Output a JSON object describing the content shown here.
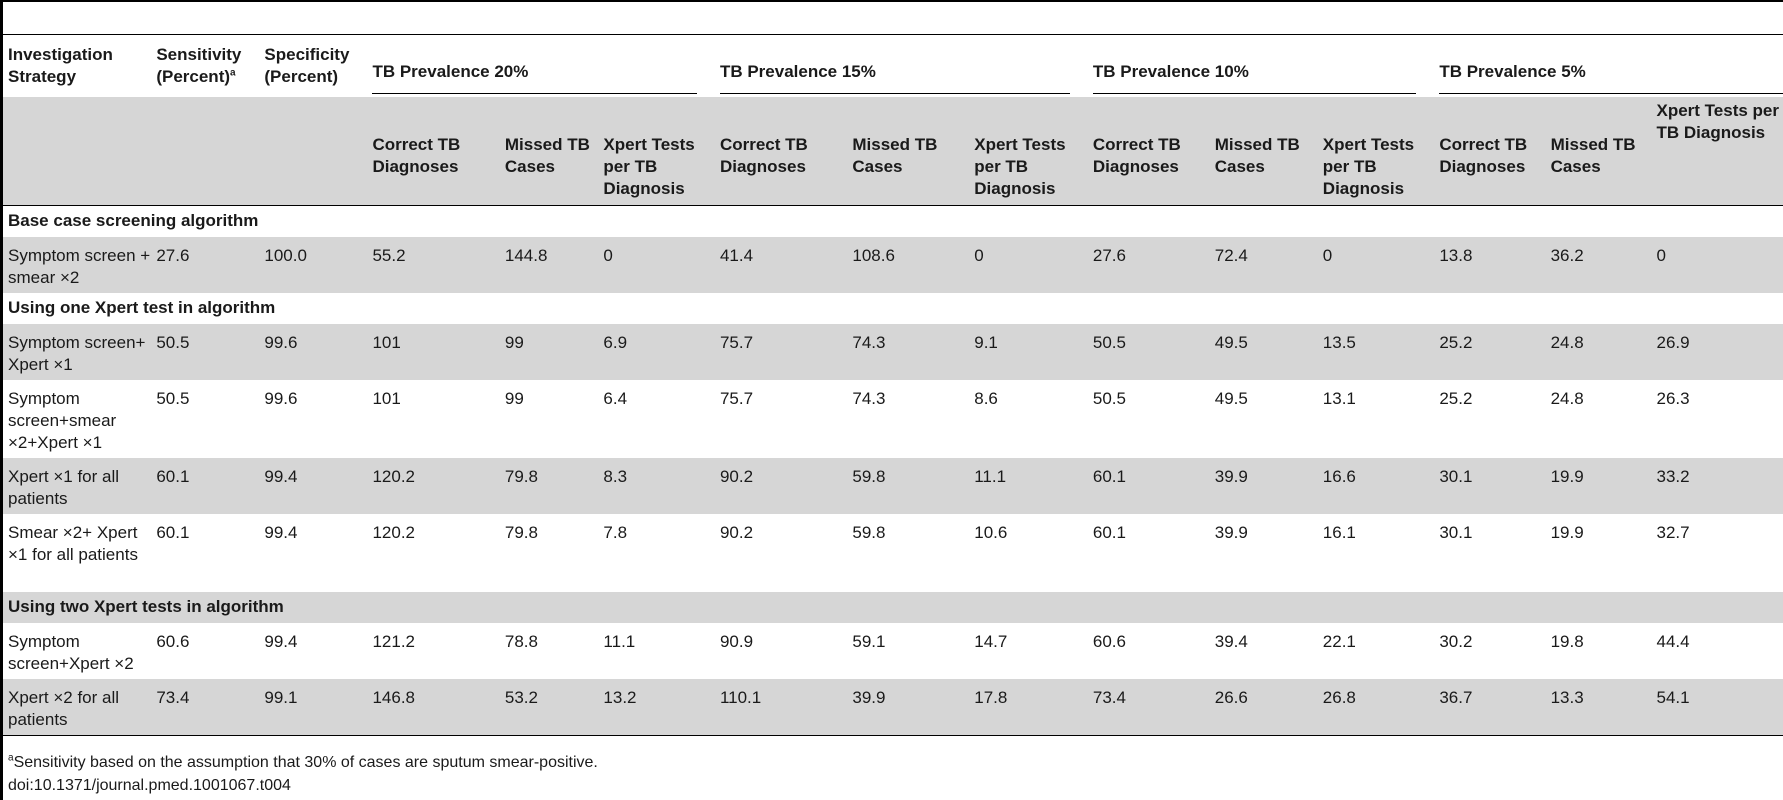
{
  "header": {
    "investigation_strategy": "Investigation Strategy",
    "sensitivity": "Sensitivity (Percent)",
    "sensitivity_marker": "a",
    "specificity": "Specificity (Percent)",
    "prevalence_groups": [
      "TB Prevalence 20%",
      "TB Prevalence 15%",
      "TB Prevalence 10%",
      "TB Prevalence 5%"
    ],
    "sub_columns": [
      "Correct TB Diagnoses",
      "Missed TB Cases",
      "Xpert Tests per TB Diagnosis"
    ]
  },
  "sections": [
    {
      "title": "Base case screening algorithm",
      "rows": [
        {
          "strategy": "Symptom screen + smear ×2",
          "sensitivity": "27.6",
          "specificity": "100.0",
          "values": [
            "55.2",
            "144.8",
            "0",
            "41.4",
            "108.6",
            "0",
            "27.6",
            "72.4",
            "0",
            "13.8",
            "36.2",
            "0"
          ]
        }
      ]
    },
    {
      "title": "Using one Xpert test in algorithm",
      "rows": [
        {
          "strategy": "Symptom screen+ Xpert ×1",
          "sensitivity": "50.5",
          "specificity": "99.6",
          "values": [
            "101",
            "99",
            "6.9",
            "75.7",
            "74.3",
            "9.1",
            "50.5",
            "49.5",
            "13.5",
            "25.2",
            "24.8",
            "26.9"
          ]
        },
        {
          "strategy": "Symptom screen+smear ×2+Xpert ×1",
          "sensitivity": "50.5",
          "specificity": "99.6",
          "values": [
            "101",
            "99",
            "6.4",
            "75.7",
            "74.3",
            "8.6",
            "50.5",
            "49.5",
            "13.1",
            "25.2",
            "24.8",
            "26.3"
          ]
        },
        {
          "strategy": "Xpert ×1 for all patients",
          "sensitivity": "60.1",
          "specificity": "99.4",
          "values": [
            "120.2",
            "79.8",
            "8.3",
            "90.2",
            "59.8",
            "11.1",
            "60.1",
            "39.9",
            "16.6",
            "30.1",
            "19.9",
            "33.2"
          ]
        },
        {
          "strategy": "Smear ×2+ Xpert ×1 for all patients",
          "sensitivity": "60.1",
          "specificity": "99.4",
          "values": [
            "120.2",
            "79.8",
            "7.8",
            "90.2",
            "59.8",
            "10.6",
            "60.1",
            "39.9",
            "16.1",
            "30.1",
            "19.9",
            "32.7"
          ]
        }
      ]
    },
    {
      "title": "Using two Xpert tests in algorithm",
      "rows": [
        {
          "strategy": "Symptom screen+Xpert ×2",
          "sensitivity": "60.6",
          "specificity": "99.4",
          "values": [
            "121.2",
            "78.8",
            "11.1",
            "90.9",
            "59.1",
            "14.7",
            "60.6",
            "39.4",
            "22.1",
            "30.2",
            "19.8",
            "44.4"
          ]
        },
        {
          "strategy": "Xpert ×2 for all patients",
          "sensitivity": "73.4",
          "specificity": "99.1",
          "values": [
            "146.8",
            "53.2",
            "13.2",
            "110.1",
            "39.9",
            "17.8",
            "73.4",
            "26.6",
            "26.8",
            "36.7",
            "13.3",
            "54.1"
          ]
        }
      ]
    }
  ],
  "footnote": {
    "marker": "a",
    "text": "Sensitivity based on the assumption that 30% of cases are sputum smear-positive.",
    "doi": "doi:10.1371/journal.pmed.1001067.t004"
  }
}
